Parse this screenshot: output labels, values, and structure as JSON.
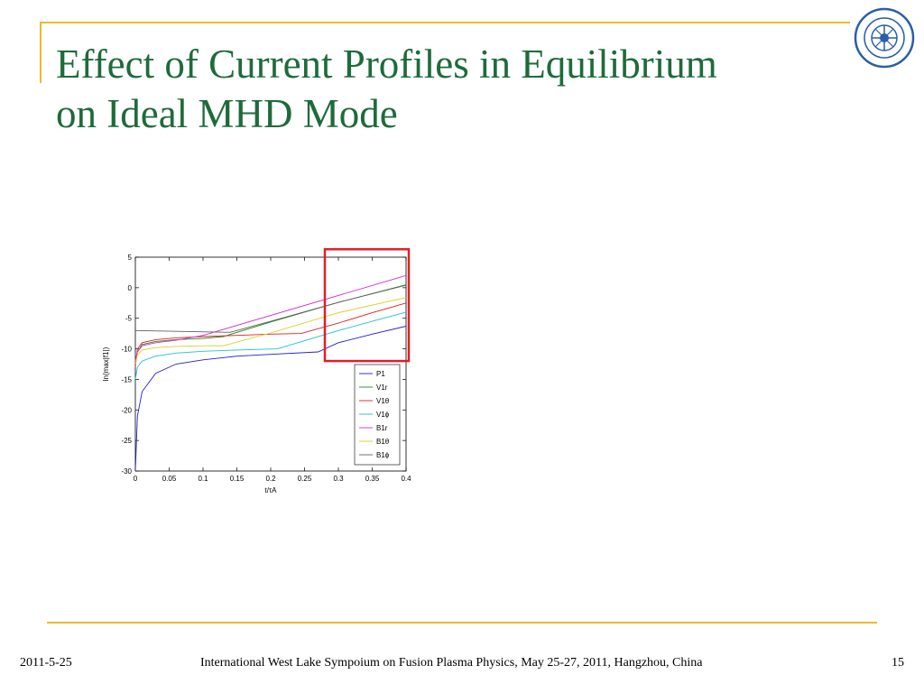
{
  "slide": {
    "title_line1": "Effect of Current Profiles in Equilibrium",
    "title_line2": "on Ideal MHD Mode",
    "date": "2011-5-25",
    "footer": "International West Lake Sympoium on Fusion Plasma Physics, May 25-27, 2011, Hangzhou, China",
    "page_number": "15"
  },
  "colors": {
    "title": "#1e6b3a",
    "accent_rule": "#f0b92e",
    "highlight_box": "#e01f26",
    "logo": "#2a5fa8"
  },
  "logo_icon": "university-seal-icon",
  "chart_data": {
    "type": "line",
    "xlabel": "t/τA",
    "ylabel": "ln(max|f1|)",
    "xlim": [
      0,
      0.4
    ],
    "ylim": [
      -30,
      5
    ],
    "x_ticks": [
      "0",
      "0.05",
      "0.1",
      "0.15",
      "0.2",
      "0.25",
      "0.3",
      "0.35",
      "0.4"
    ],
    "y_ticks": [
      "5",
      "0",
      "-5",
      "-10",
      "-15",
      "-20",
      "-25",
      "-30"
    ],
    "grid": false,
    "legend_position": "lower-right",
    "highlight_region": {
      "x": [
        0.28,
        0.4
      ],
      "y": [
        -12,
        6
      ]
    },
    "series": [
      {
        "name": "P1",
        "color": "#2020d0",
        "x": [
          0,
          0.003,
          0.01,
          0.03,
          0.06,
          0.1,
          0.15,
          0.2,
          0.27,
          0.3,
          0.35,
          0.4
        ],
        "y": [
          -30,
          -21,
          -17,
          -14,
          -12.5,
          -11.8,
          -11.2,
          -10.9,
          -10.5,
          -9.0,
          -7.6,
          -6.3
        ]
      },
      {
        "name": "V1r",
        "color": "#1f8a1f",
        "x": [
          0,
          0.003,
          0.01,
          0.03,
          0.06,
          0.1,
          0.13,
          0.2,
          0.3,
          0.4
        ],
        "y": [
          -12,
          -10.5,
          -9.3,
          -8.8,
          -8.5,
          -8.3,
          -8.0,
          -5.6,
          -2.4,
          0.5
        ]
      },
      {
        "name": "V1θ",
        "color": "#e02020",
        "x": [
          0,
          0.003,
          0.01,
          0.03,
          0.06,
          0.1,
          0.15,
          0.2,
          0.245,
          0.3,
          0.35,
          0.4
        ],
        "y": [
          -13,
          -10.0,
          -9.0,
          -8.5,
          -8.2,
          -8.0,
          -7.8,
          -7.6,
          -7.5,
          -5.8,
          -4.1,
          -2.5
        ]
      },
      {
        "name": "V1ϕ",
        "color": "#20c0d0",
        "x": [
          0,
          0.003,
          0.01,
          0.03,
          0.06,
          0.1,
          0.15,
          0.21,
          0.3,
          0.35,
          0.4
        ],
        "y": [
          -15,
          -13,
          -12,
          -11.2,
          -10.7,
          -10.4,
          -10.2,
          -10.0,
          -7.0,
          -5.5,
          -4.0
        ]
      },
      {
        "name": "B1r",
        "color": "#d030d0",
        "x": [
          0,
          0.003,
          0.01,
          0.03,
          0.06,
          0.1,
          0.4
        ],
        "y": [
          -12,
          -10.5,
          -9.5,
          -9.0,
          -8.6,
          -7.8,
          2.0
        ]
      },
      {
        "name": "B1θ",
        "color": "#d8d020",
        "x": [
          0,
          0.003,
          0.01,
          0.03,
          0.06,
          0.1,
          0.13,
          0.2,
          0.3,
          0.4
        ],
        "y": [
          -12.5,
          -11.0,
          -10.2,
          -9.8,
          -9.6,
          -9.5,
          -9.5,
          -7.4,
          -4.1,
          -1.6
        ]
      },
      {
        "name": "B1ϕ",
        "color": "#606060",
        "x": [
          0,
          0.14,
          0.2,
          0.3,
          0.4
        ],
        "y": [
          -7,
          -7.3,
          -5.5,
          -2.4,
          0.4
        ]
      }
    ]
  }
}
